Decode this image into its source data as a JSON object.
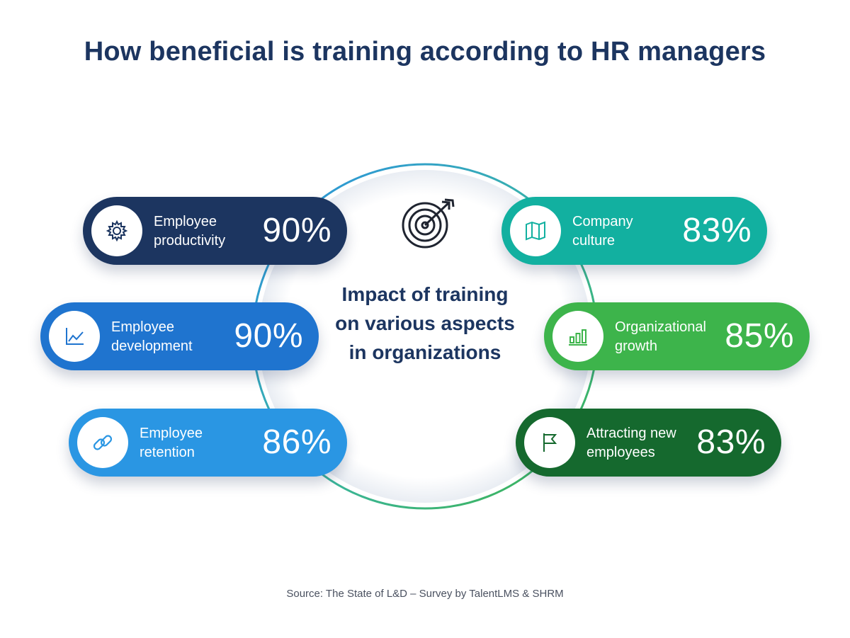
{
  "title": "How beneficial is training according to HR managers",
  "center_label": "Impact of training on various aspects in organizations",
  "source": "Source: The State of L&D – Survey by TalentLMS & SHRM",
  "colors": {
    "title": "#1c3560",
    "employee_productivity": "#1c3560",
    "employee_development": "#1f74cf",
    "employee_retention": "#2a96e3",
    "company_culture": "#12b0a0",
    "organizational_growth": "#3db44b",
    "attracting_new_employees": "#15692e"
  },
  "chart_data": {
    "type": "bar",
    "title": "How beneficial is training according to HR managers",
    "categories": [
      "Employee productivity",
      "Employee development",
      "Employee retention",
      "Company culture",
      "Organizational growth",
      "Attracting new employees"
    ],
    "values": [
      90,
      90,
      86,
      83,
      85,
      83
    ],
    "unit": "%"
  },
  "items": [
    {
      "label": "Employee\nproductivity",
      "value": "90%",
      "icon": "gear-icon"
    },
    {
      "label": "Employee\ndevelopment",
      "value": "90%",
      "icon": "line-chart-icon"
    },
    {
      "label": "Employee\nretention",
      "value": "86%",
      "icon": "link-icon"
    },
    {
      "label": "Company\nculture",
      "value": "83%",
      "icon": "map-icon"
    },
    {
      "label": "Organizational\ngrowth",
      "value": "85%",
      "icon": "bar-chart-icon"
    },
    {
      "label": "Attracting new\nemployees",
      "value": "83%",
      "icon": "flag-icon"
    }
  ]
}
